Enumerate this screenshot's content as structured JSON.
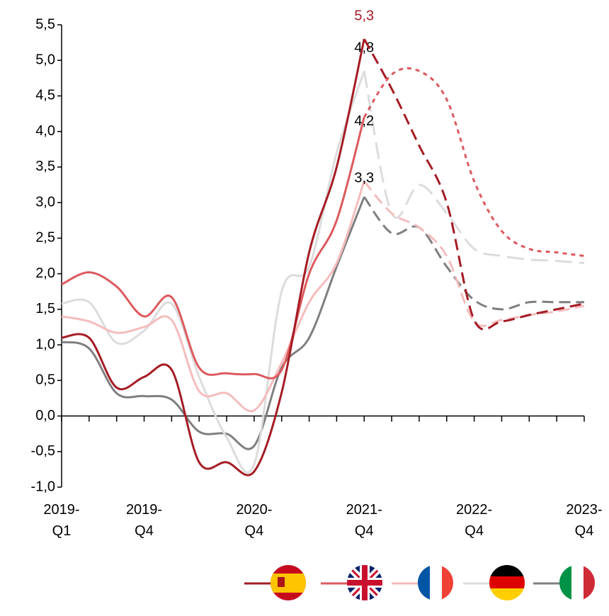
{
  "chart_data": {
    "type": "line",
    "categories": [
      "2019-Q1",
      null,
      null,
      "2019-Q4",
      null,
      null,
      null,
      "2020-Q4",
      null,
      null,
      null,
      "2021-Q4",
      null,
      null,
      null,
      "2022-Q4",
      null,
      null,
      null,
      "2023-Q4"
    ],
    "series": [
      {
        "color": "#a51c24",
        "values": [
          1.1,
          1.1,
          0.4,
          0.55,
          0.65,
          -0.65,
          -0.65,
          -0.78,
          0.33,
          2.3,
          3.5,
          5.3,
          4.6,
          3.8,
          3.0,
          1.35,
          1.33,
          1.42,
          1.5,
          1.58
        ],
        "value_labels": [
          null,
          null,
          null,
          null,
          null,
          null,
          null,
          null,
          null,
          null,
          null,
          "5,3",
          null,
          null,
          null,
          null,
          null,
          null,
          null,
          null
        ]
      },
      {
        "color": "#dd5a5e",
        "values": [
          1.85,
          2.02,
          1.82,
          1.4,
          1.67,
          0.68,
          0.6,
          0.59,
          0.65,
          2.0,
          2.75,
          4.2,
          4.8,
          4.85,
          4.45,
          3.3,
          2.6,
          2.35,
          2.3,
          2.25
        ],
        "value_labels": [
          null,
          null,
          null,
          null,
          null,
          null,
          null,
          null,
          null,
          null,
          null,
          "4,2",
          null,
          null,
          null,
          null,
          null,
          null,
          null,
          null
        ]
      },
      {
        "color": "#f5bcbc",
        "values": [
          1.4,
          1.33,
          1.17,
          1.25,
          1.35,
          0.35,
          0.32,
          0.08,
          0.75,
          1.6,
          2.15,
          3.3,
          2.85,
          2.65,
          2.25,
          1.33,
          1.35,
          1.42,
          1.47,
          1.55
        ],
        "value_labels": [
          null,
          null,
          null,
          null,
          null,
          null,
          null,
          null,
          null,
          null,
          null,
          "3,3",
          null,
          null,
          null,
          null,
          null,
          null,
          null,
          null
        ]
      },
      {
        "color": "#dcdcdc",
        "values": [
          1.58,
          1.6,
          1.03,
          1.2,
          1.58,
          0.55,
          -0.3,
          -0.68,
          1.75,
          2.1,
          3.7,
          4.85,
          2.85,
          3.25,
          2.85,
          2.35,
          2.25,
          2.2,
          2.18,
          2.15
        ],
        "value_labels": [
          null,
          null,
          null,
          null,
          null,
          null,
          null,
          null,
          null,
          null,
          null,
          "4,8",
          null,
          null,
          null,
          null,
          null,
          null,
          null,
          null
        ]
      },
      {
        "color": "#7f7f7f",
        "values": [
          1.04,
          0.95,
          0.32,
          0.28,
          0.23,
          -0.22,
          -0.25,
          -0.42,
          0.68,
          1.1,
          2.1,
          3.08,
          2.57,
          2.65,
          2.1,
          1.63,
          1.5,
          1.6,
          1.6,
          1.6
        ]
      }
    ],
    "dashed_from": "2021-Q4",
    "ylim": [
      -1.0,
      5.5
    ],
    "yticks": [
      {
        "value": -1.0,
        "label": "-1,0"
      },
      {
        "value": -0.5,
        "label": "-0,5"
      },
      {
        "value": 0,
        "label": "0,0"
      },
      {
        "value": 0.5,
        "label": "0,5"
      },
      {
        "value": 1.0,
        "label": "1,0"
      },
      {
        "value": 1.5,
        "label": "1,5"
      },
      {
        "value": 2.0,
        "label": "2,0"
      },
      {
        "value": 2.5,
        "label": "2,5"
      },
      {
        "value": 3.0,
        "label": "3,0"
      },
      {
        "value": 3.5,
        "label": "3,5"
      },
      {
        "value": 4.0,
        "label": "4,0"
      },
      {
        "value": 4.5,
        "label": "4,5"
      },
      {
        "value": 5.0,
        "label": "5,0"
      },
      {
        "value": 5.5,
        "label": "5,5"
      }
    ],
    "grid": false
  }
}
